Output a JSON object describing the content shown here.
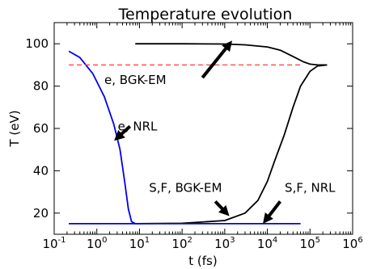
{
  "chart_data": {
    "type": "line",
    "title": "Temperature evolution",
    "xlabel": "t (fs)",
    "ylabel": "T (eV)",
    "xscale": "log",
    "xlim": [
      0.1,
      1000000
    ],
    "ylim": [
      10,
      110
    ],
    "grid": false,
    "x_ticks": [
      {
        "value": 0.1,
        "base": "10",
        "exp": "-1"
      },
      {
        "value": 1,
        "base": "10",
        "exp": "0"
      },
      {
        "value": 10,
        "base": "10",
        "exp": "1"
      },
      {
        "value": 100,
        "base": "10",
        "exp": "2"
      },
      {
        "value": 1000,
        "base": "10",
        "exp": "3"
      },
      {
        "value": 10000,
        "base": "10",
        "exp": "4"
      },
      {
        "value": 100000,
        "base": "10",
        "exp": "5"
      },
      {
        "value": 1000000,
        "base": "10",
        "exp": "6"
      }
    ],
    "y_ticks": [
      {
        "value": 20,
        "label": "20"
      },
      {
        "value": 40,
        "label": "40"
      },
      {
        "value": 60,
        "label": "60"
      },
      {
        "value": 80,
        "label": "80"
      },
      {
        "value": 100,
        "label": "100"
      }
    ],
    "series": [
      {
        "id": "e-bgk-em",
        "color": "#000000",
        "dash": "none",
        "points": [
          [
            8,
            100
          ],
          [
            100,
            100
          ],
          [
            1000,
            99.9
          ],
          [
            3000,
            99.5
          ],
          [
            10000,
            98.5
          ],
          [
            20000,
            97
          ],
          [
            40000,
            94
          ],
          [
            70000,
            91.5
          ],
          [
            100000,
            90.4
          ],
          [
            150000,
            90
          ],
          [
            250000,
            90
          ]
        ]
      },
      {
        "id": "s-bgk-em",
        "color": "#000000",
        "dash": "none",
        "points": [
          [
            8,
            15
          ],
          [
            100,
            15.2
          ],
          [
            1000,
            16.5
          ],
          [
            3000,
            20
          ],
          [
            6000,
            26
          ],
          [
            10000,
            35
          ],
          [
            15000,
            45
          ],
          [
            25000,
            57
          ],
          [
            40000,
            70
          ],
          [
            60000,
            80
          ],
          [
            100000,
            87
          ],
          [
            150000,
            89.5
          ],
          [
            250000,
            90
          ]
        ]
      },
      {
        "id": "e-nrl",
        "color": "#0000ee",
        "dash": "none",
        "points": [
          [
            0.22,
            96.5
          ],
          [
            0.4,
            93.5
          ],
          [
            0.8,
            86
          ],
          [
            1.5,
            75
          ],
          [
            2.5,
            62
          ],
          [
            3.5,
            50
          ],
          [
            4.5,
            35
          ],
          [
            5.5,
            22
          ],
          [
            6.5,
            16
          ],
          [
            8,
            15
          ]
        ]
      },
      {
        "id": "s-nrl",
        "color": "#0000ee",
        "dash": "none",
        "points": [
          [
            0.22,
            15
          ],
          [
            1,
            15
          ],
          [
            10,
            15
          ],
          [
            1000,
            15
          ],
          [
            60000,
            15
          ]
        ]
      },
      {
        "id": "reference-90",
        "color": "#ff3b3b",
        "dash": "6,4",
        "points": [
          [
            0.22,
            90
          ],
          [
            60000,
            90
          ]
        ]
      }
    ],
    "annotations": [
      {
        "id": "e-bgk-em",
        "text": "e, BGK-EM",
        "text_at": [
          8,
          81
        ],
        "anchor": "middle",
        "arrow_from": [
          300,
          84
        ],
        "arrow_to": [
          1300,
          100
        ]
      },
      {
        "id": "e-nrl",
        "text": "e, NRL",
        "text_at": [
          9,
          59
        ],
        "anchor": "middle",
        "arrow_from": [
          6,
          61
        ],
        "arrow_to": [
          3.0,
          55.5
        ]
      },
      {
        "id": "s-bgk-em",
        "text": "S,F, BGK-EM",
        "text_at": [
          120,
          30
        ],
        "anchor": "middle",
        "arrow_from": [
          600,
          25.5
        ],
        "arrow_to": [
          1100,
          20
        ]
      },
      {
        "id": "s-nrl",
        "text": "S,F, NRL",
        "text_at": [
          100000,
          30
        ],
        "anchor": "middle",
        "arrow_from": [
          20000,
          25.5
        ],
        "arrow_to": [
          9000,
          16.5
        ]
      }
    ]
  }
}
